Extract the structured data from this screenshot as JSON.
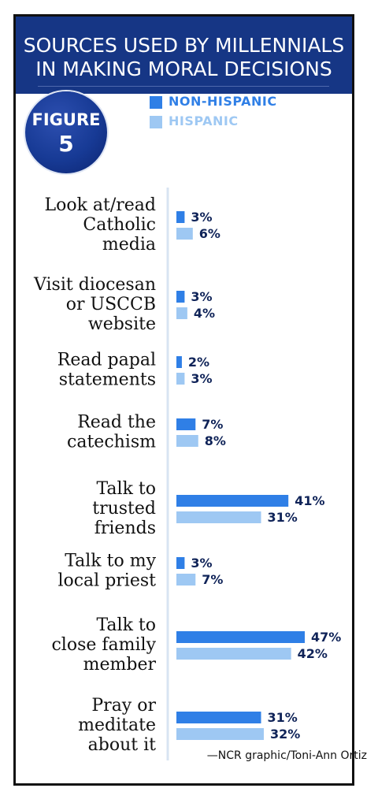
{
  "header": {
    "title_line1": "SOURCES USED BY MILLENNIALS",
    "title_line2": "IN MAKING MORAL DECISIONS"
  },
  "badge": {
    "word": "FIGURE",
    "number": "5"
  },
  "credit": "—NCR graphic/Toni-Ann Ortiz",
  "colors": {
    "header": "#163685",
    "non_hispanic": "#2f7fe6",
    "hispanic": "#9ec8f3",
    "label": "#0f2358",
    "axis": "#d8e4f2"
  },
  "chart_data": {
    "type": "bar",
    "orientation": "horizontal",
    "value_format": "percent",
    "categories": [
      [
        "Look at/read",
        "Catholic",
        "media"
      ],
      [
        "Visit diocesan",
        "or USCCB",
        "website"
      ],
      [
        "Read papal",
        "statements"
      ],
      [
        "Read the",
        "catechism"
      ],
      [
        "Talk to",
        "trusted",
        "friends"
      ],
      [
        "Talk to my",
        "local priest"
      ],
      [
        "Talk to",
        "close family",
        "member"
      ],
      [
        "Pray or",
        "meditate",
        "about it"
      ]
    ],
    "series": [
      {
        "name": "NON-HISPANIC",
        "values": [
          3,
          3,
          2,
          7,
          41,
          3,
          47,
          31
        ]
      },
      {
        "name": "HISPANIC",
        "values": [
          6,
          4,
          3,
          8,
          31,
          7,
          42,
          32
        ]
      }
    ],
    "xlim": [
      0,
      47
    ]
  }
}
